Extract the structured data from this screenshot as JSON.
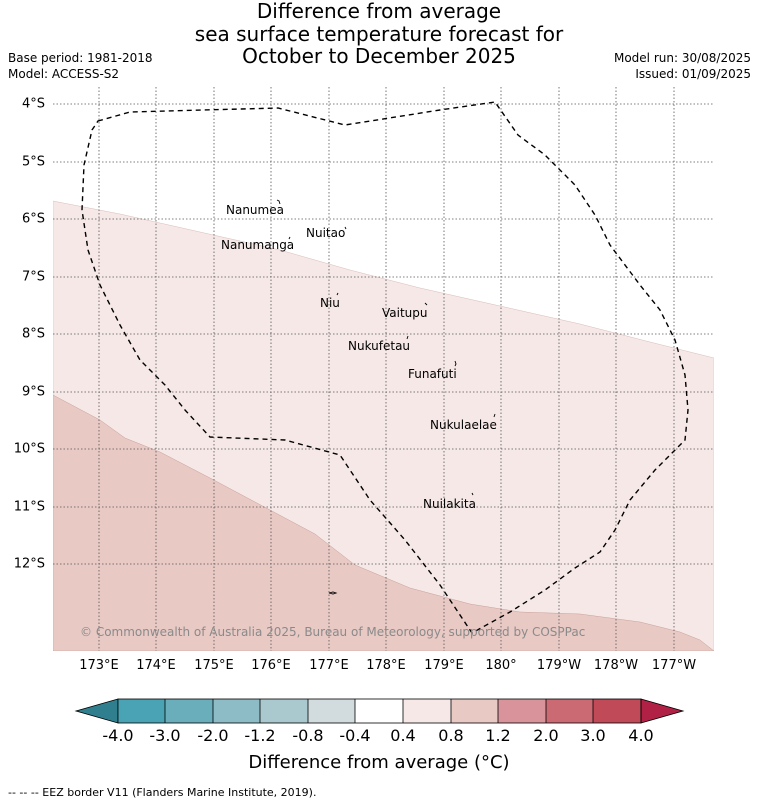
{
  "title": {
    "line1": "Difference from average",
    "line2": "sea surface temperature forecast for",
    "line3": "October to December 2025"
  },
  "meta": {
    "base_period": "Base period: 1981-2018",
    "model": "Model: ACCESS-S2",
    "model_run": "Model run: 30/08/2025",
    "issued": "Issued: 01/09/2025"
  },
  "map": {
    "lat_labels": [
      "4°S",
      "5°S",
      "6°S",
      "7°S",
      "8°S",
      "9°S",
      "10°S",
      "11°S",
      "12°S"
    ],
    "lon_labels": [
      "173°E",
      "174°E",
      "175°E",
      "176°E",
      "177°E",
      "178°E",
      "179°E",
      "180°",
      "179°W",
      "178°W",
      "177°W"
    ],
    "islands": [
      "Nanumea",
      "Nuitao",
      "Nanumanga",
      "Niu",
      "Vaitupu",
      "Nukufetau",
      "Funafuti",
      "Nukulaelae",
      "Nuilakita"
    ],
    "copyright": "© Commonwealth of Australia 2025, Bureau of Meteorology, supported by COSPPac",
    "anomaly_zones": [
      {
        "bin": "0.4 to 0.8",
        "color": "#f5e8e6"
      },
      {
        "bin": "0.8 to 1.2",
        "color": "#e8c9c4"
      }
    ],
    "gridlines": "dotted",
    "eez_line_style": "dashed"
  },
  "colorbar": {
    "ticks": [
      "-4.0",
      "-3.0",
      "-2.0",
      "-1.2",
      "-0.8",
      "-0.4",
      "0.4",
      "0.8",
      "1.2",
      "2.0",
      "3.0",
      "4.0"
    ],
    "colors": [
      "#2f7f8f",
      "#4aa3b5",
      "#6aadbb",
      "#8dbcc6",
      "#a9c9ce",
      "#d2dbdd",
      "#ffffff",
      "#f5e8e6",
      "#e8c9c4",
      "#d9949b",
      "#cc6a74",
      "#c04a57",
      "#b02145"
    ],
    "label": "Difference from average (°C)"
  },
  "footer": "-- -- -- EEZ border V11 (Flanders Marine Institute, 2019)."
}
